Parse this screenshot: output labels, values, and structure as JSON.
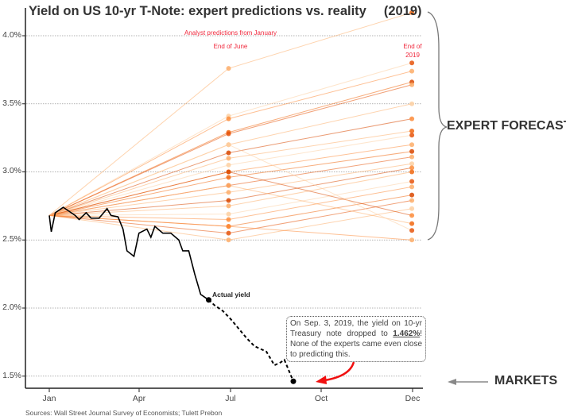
{
  "chart_data": {
    "type": "line",
    "title": "Yield on US 10-yr T-Note: expert predictions vs. reality",
    "title_year": "(2019)",
    "year": 2019,
    "ylim": [
      1.45,
      4.2
    ],
    "yticks": [
      "1.5%",
      "2.0%",
      "2.5%",
      "3.0%",
      "3.5%",
      "4.0%"
    ],
    "ytick_values": [
      1.5,
      2.0,
      2.5,
      3.0,
      3.5,
      4.0
    ],
    "xticks": [
      "Jan",
      "Apr",
      "Jul",
      "Oct",
      "Dec"
    ],
    "grid": "horizontal dotted",
    "actual": {
      "label": "Actual yield",
      "color": "#000000",
      "solid": [
        [
          "01-01",
          2.68
        ],
        [
          "01-03",
          2.56
        ],
        [
          "01-07",
          2.7
        ],
        [
          "01-15",
          2.74
        ],
        [
          "01-19",
          2.72
        ],
        [
          "01-27",
          2.68
        ],
        [
          "01-31",
          2.65
        ],
        [
          "02-07",
          2.7
        ],
        [
          "02-12",
          2.66
        ],
        [
          "02-20",
          2.66
        ],
        [
          "02-28",
          2.73
        ],
        [
          "03-04",
          2.68
        ],
        [
          "03-11",
          2.67
        ],
        [
          "03-16",
          2.58
        ],
        [
          "03-20",
          2.42
        ],
        [
          "03-27",
          2.38
        ],
        [
          "04-01",
          2.55
        ],
        [
          "04-09",
          2.58
        ],
        [
          "04-13",
          2.52
        ],
        [
          "04-17",
          2.6
        ],
        [
          "04-25",
          2.55
        ],
        [
          "05-03",
          2.55
        ],
        [
          "05-11",
          2.5
        ],
        [
          "05-15",
          2.42
        ],
        [
          "05-21",
          2.42
        ],
        [
          "05-27",
          2.25
        ],
        [
          "06-02",
          2.1
        ],
        [
          "06-06",
          2.08
        ],
        [
          "06-10",
          2.06
        ]
      ],
      "dashed": [
        [
          "06-10",
          2.06
        ],
        [
          "06-16",
          2.02
        ],
        [
          "06-24",
          1.98
        ],
        [
          "07-02",
          1.92
        ],
        [
          "07-10",
          1.85
        ],
        [
          "07-18",
          1.78
        ],
        [
          "07-26",
          1.72
        ],
        [
          "08-07",
          1.68
        ],
        [
          "08-15",
          1.58
        ],
        [
          "08-21",
          1.6
        ],
        [
          "08-25",
          1.62
        ],
        [
          "08-29",
          1.55
        ],
        [
          "09-03",
          1.462
        ]
      ]
    },
    "experts": {
      "label": "Analyst predictions from January",
      "start": [
        "01-01",
        2.68
      ],
      "june_label": "End of June",
      "dec_label": "End of 2019",
      "june": [
        3.76,
        3.41,
        3.39,
        3.29,
        3.28,
        3.2,
        3.14,
        3.1,
        3.05,
        3.0,
        2.96,
        2.9,
        2.85,
        2.79,
        2.75,
        2.69,
        2.65,
        2.6,
        2.55,
        2.5,
        3.0,
        2.9,
        3.2,
        2.6
      ],
      "dec": [
        4.17,
        3.8,
        3.74,
        3.66,
        3.64,
        3.5,
        3.39,
        3.3,
        3.27,
        3.2,
        3.15,
        3.11,
        3.06,
        3.03,
        3.0,
        2.93,
        2.89,
        2.83,
        2.79,
        2.73,
        2.68,
        2.62,
        2.57,
        2.5
      ],
      "colors": [
        "#fdae6b",
        "#fdd0a2",
        "#fd8d3c",
        "#f16913",
        "#e6550d",
        "#fdae6b",
        "#d94801"
      ]
    }
  },
  "annotations": {
    "actual_label": "Actual yield",
    "callout_pre": "On Sep. 3, 2019, the yield on 10-yr Treasury note dropped to ",
    "callout_value": "1.462%",
    "callout_post": "! None of the experts came even close to predicting this.",
    "expert_forecasts": "EXPERT FORECASTS",
    "markets": "MARKETS",
    "source": "Sources: Wall Street Journal Survey of Economists; Tulett Prebon"
  }
}
